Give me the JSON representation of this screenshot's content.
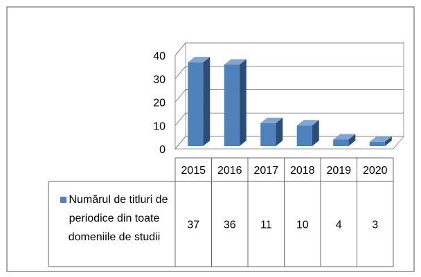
{
  "chart_data": {
    "type": "bar3d",
    "categories": [
      "2015",
      "2016",
      "2017",
      "2018",
      "2019",
      "2020"
    ],
    "series": [
      {
        "name": "Numărul de titluri de periodice din toate domeniile de studii",
        "color": "#4f81bd",
        "values": [
          37,
          36,
          11,
          10,
          4,
          3
        ]
      }
    ],
    "ylim": [
      0,
      40
    ],
    "yticks": [
      0,
      10,
      20,
      30,
      40
    ],
    "grid": true,
    "legend": "data-table"
  }
}
